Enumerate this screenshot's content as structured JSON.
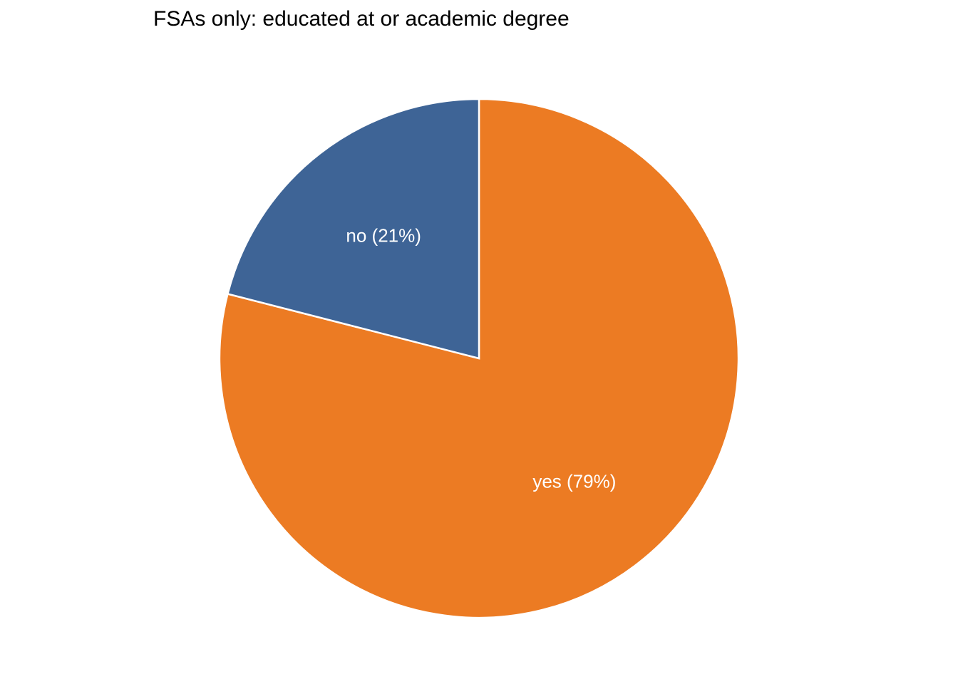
{
  "chart_data": {
    "type": "pie",
    "title": "FSAs only: educated at or academic degree",
    "slices": [
      {
        "category": "no",
        "value": 21,
        "label": "no (21%)",
        "color": "#3e6496"
      },
      {
        "category": "yes",
        "value": 79,
        "label": "yes (79%)",
        "color": "#ec7b23"
      }
    ],
    "start": "12 o'clock",
    "direction": "clockwise",
    "slice_border_color": "#ffffff",
    "legend": "none"
  }
}
